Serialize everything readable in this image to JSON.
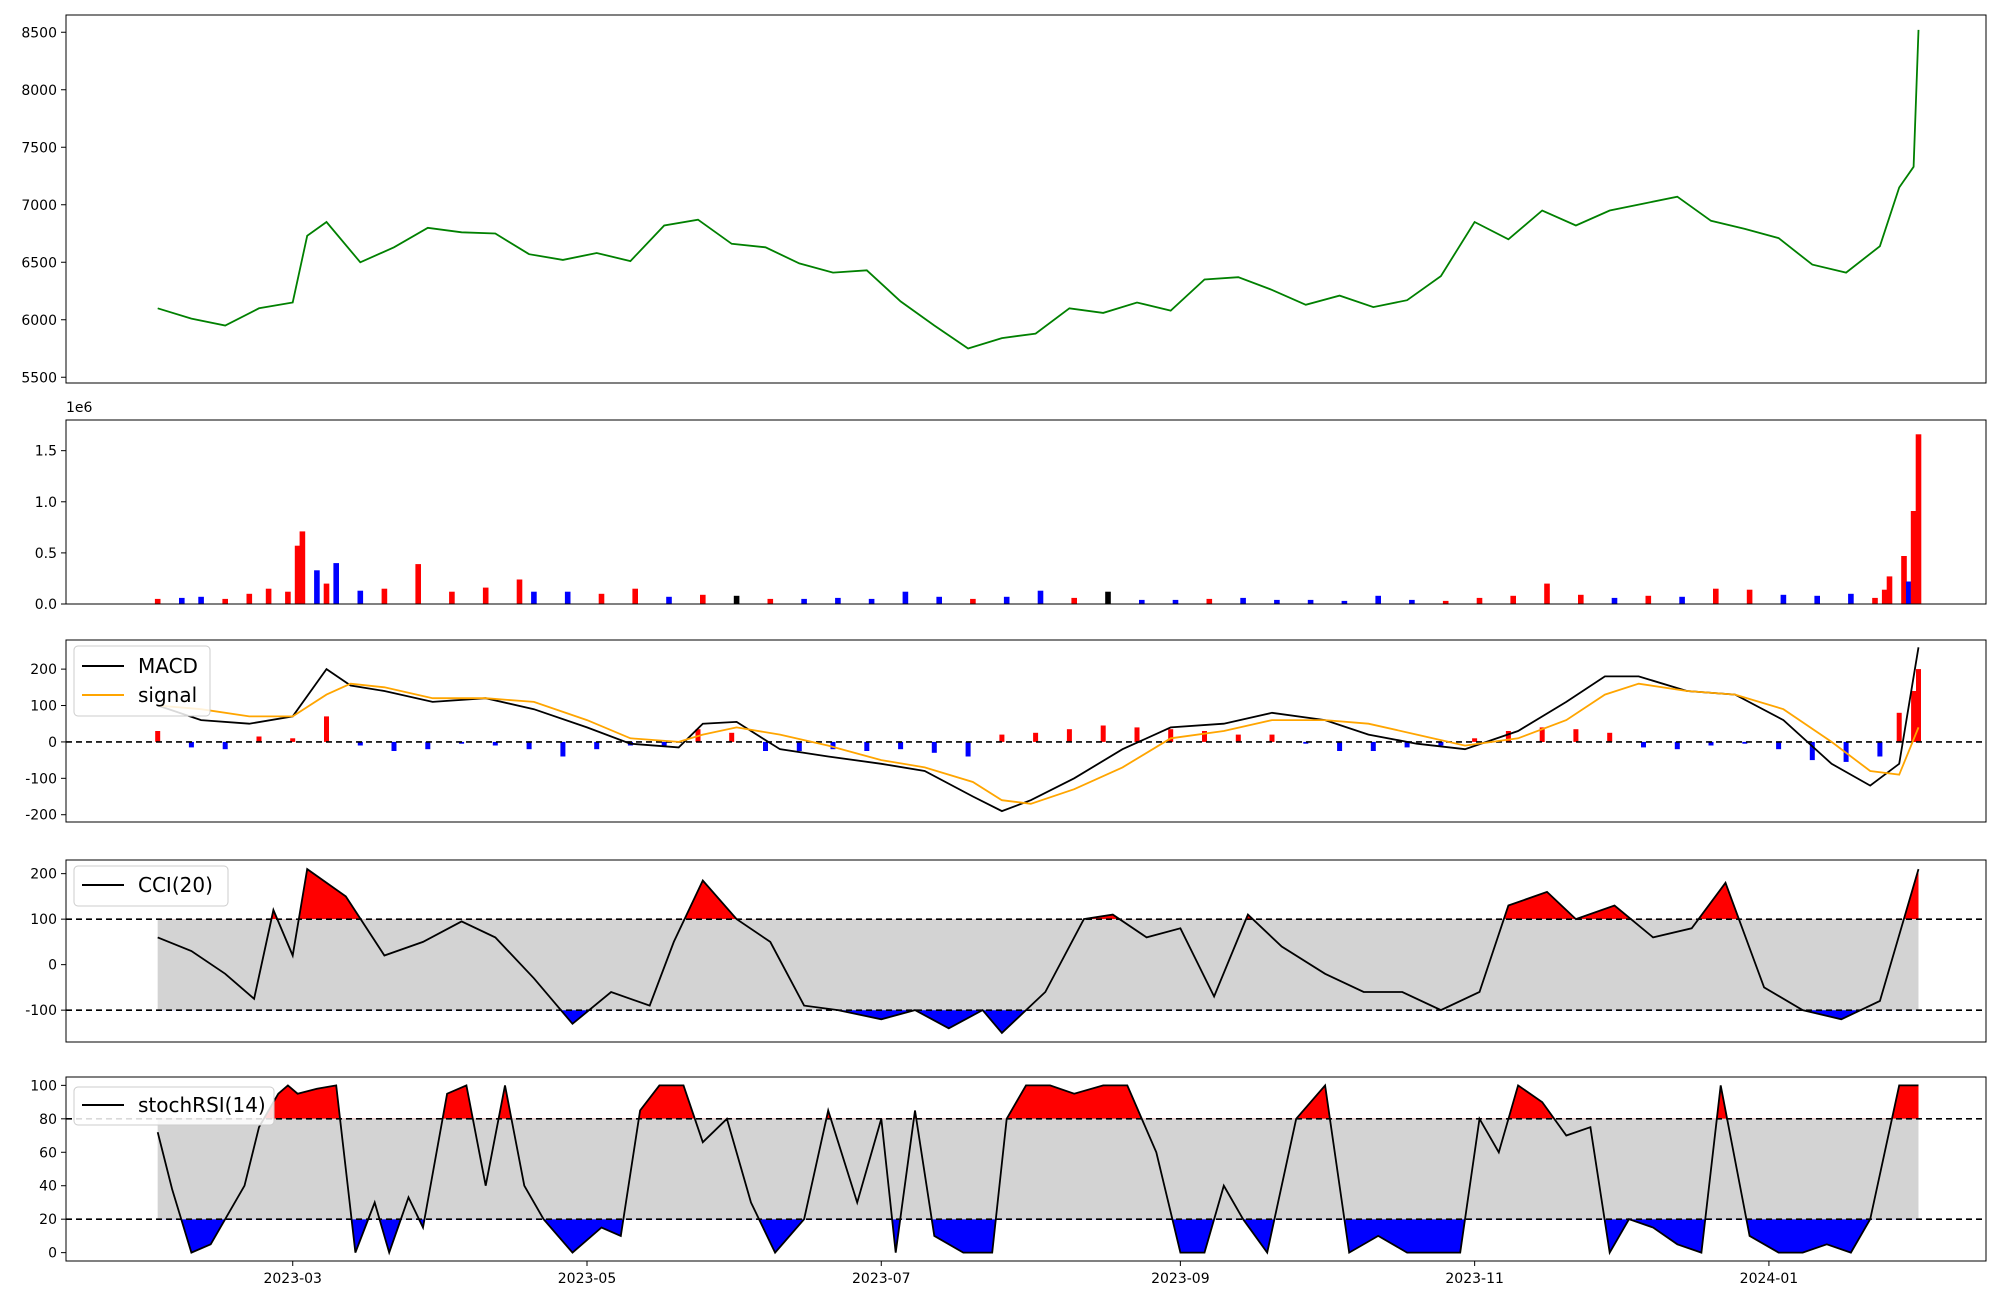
{
  "chart_data": [
    {
      "type": "line",
      "panel": "price",
      "color": "#008000",
      "ylim": [
        5450,
        8650
      ],
      "yticks": [
        5500,
        6000,
        6500,
        7000,
        7500,
        8000,
        8500
      ],
      "x": [
        "2023-02-01",
        "2023-02-08",
        "2023-02-15",
        "2023-02-22",
        "2023-03-01",
        "2023-03-04",
        "2023-03-08",
        "2023-03-15",
        "2023-03-22",
        "2023-03-29",
        "2023-04-05",
        "2023-04-12",
        "2023-04-19",
        "2023-04-26",
        "2023-05-03",
        "2023-05-10",
        "2023-05-17",
        "2023-05-24",
        "2023-05-31",
        "2023-06-07",
        "2023-06-14",
        "2023-06-21",
        "2023-06-28",
        "2023-07-05",
        "2023-07-12",
        "2023-07-19",
        "2023-07-26",
        "2023-08-02",
        "2023-08-09",
        "2023-08-16",
        "2023-08-23",
        "2023-08-30",
        "2023-09-06",
        "2023-09-13",
        "2023-09-20",
        "2023-09-27",
        "2023-10-04",
        "2023-10-11",
        "2023-10-18",
        "2023-10-25",
        "2023-11-01",
        "2023-11-08",
        "2023-11-15",
        "2023-11-22",
        "2023-11-29",
        "2023-12-06",
        "2023-12-13",
        "2023-12-20",
        "2023-12-27",
        "2024-01-03",
        "2024-01-10",
        "2024-01-17",
        "2024-01-24",
        "2024-01-28",
        "2024-01-31",
        "2024-02-01"
      ],
      "values": [
        6100,
        6010,
        5950,
        6100,
        6150,
        6730,
        6850,
        6500,
        6630,
        6800,
        6760,
        6750,
        6570,
        6520,
        6580,
        6510,
        6820,
        6870,
        6660,
        6630,
        6490,
        6410,
        6430,
        6160,
        5950,
        5750,
        5840,
        5880,
        6100,
        6060,
        6150,
        6080,
        6350,
        6370,
        6260,
        6130,
        6210,
        6110,
        6170,
        6380,
        6850,
        6700,
        6950,
        6820,
        6950,
        7010,
        7070,
        6860,
        6790,
        6710,
        6480,
        6410,
        6640,
        7150,
        7330,
        8520
      ],
      "title": "",
      "xlabel": "",
      "ylabel": ""
    },
    {
      "type": "bar",
      "panel": "volume",
      "offset_label": "1e6",
      "ylim": [
        0,
        1.8
      ],
      "yticks": [
        0.0,
        0.5,
        1.0,
        1.5
      ],
      "bar_colors": {
        "up": "#ff0000",
        "down": "#0000ff",
        "flat": "#000000"
      },
      "x": [
        "2023-02-01",
        "2023-02-06",
        "2023-02-10",
        "2023-02-15",
        "2023-02-20",
        "2023-02-24",
        "2023-02-28",
        "2023-03-02",
        "2023-03-03",
        "2023-03-06",
        "2023-03-08",
        "2023-03-10",
        "2023-03-15",
        "2023-03-20",
        "2023-03-27",
        "2023-04-03",
        "2023-04-10",
        "2023-04-17",
        "2023-04-20",
        "2023-04-27",
        "2023-05-04",
        "2023-05-11",
        "2023-05-18",
        "2023-05-25",
        "2023-06-01",
        "2023-06-08",
        "2023-06-15",
        "2023-06-22",
        "2023-06-29",
        "2023-07-06",
        "2023-07-13",
        "2023-07-20",
        "2023-07-27",
        "2023-08-03",
        "2023-08-10",
        "2023-08-17",
        "2023-08-24",
        "2023-08-31",
        "2023-09-07",
        "2023-09-14",
        "2023-09-21",
        "2023-09-28",
        "2023-10-05",
        "2023-10-12",
        "2023-10-19",
        "2023-10-26",
        "2023-11-02",
        "2023-11-09",
        "2023-11-16",
        "2023-11-23",
        "2023-11-30",
        "2023-12-07",
        "2023-12-14",
        "2023-12-21",
        "2023-12-28",
        "2024-01-04",
        "2024-01-11",
        "2024-01-18",
        "2024-01-23",
        "2024-01-25",
        "2024-01-26",
        "2024-01-29",
        "2024-01-30",
        "2024-01-31",
        "2024-02-01"
      ],
      "values": [
        0.05,
        0.06,
        0.07,
        0.05,
        0.1,
        0.15,
        0.12,
        0.57,
        0.71,
        0.33,
        0.2,
        0.4,
        0.13,
        0.15,
        0.39,
        0.12,
        0.16,
        0.24,
        0.12,
        0.12,
        0.1,
        0.15,
        0.07,
        0.09,
        0.08,
        0.05,
        0.05,
        0.06,
        0.05,
        0.12,
        0.07,
        0.05,
        0.07,
        0.13,
        0.06,
        0.12,
        0.04,
        0.04,
        0.05,
        0.06,
        0.04,
        0.04,
        0.03,
        0.08,
        0.04,
        0.03,
        0.06,
        0.08,
        0.2,
        0.09,
        0.06,
        0.08,
        0.07,
        0.15,
        0.14,
        0.09,
        0.08,
        0.1,
        0.06,
        0.14,
        0.27,
        0.47,
        0.22,
        0.91,
        1.66
      ],
      "direction": [
        "up",
        "down",
        "down",
        "up",
        "up",
        "up",
        "up",
        "up",
        "up",
        "down",
        "up",
        "down",
        "down",
        "up",
        "up",
        "up",
        "up",
        "up",
        "down",
        "down",
        "up",
        "up",
        "down",
        "up",
        "flat",
        "up",
        "down",
        "down",
        "down",
        "down",
        "down",
        "up",
        "down",
        "down",
        "up",
        "flat",
        "down",
        "down",
        "up",
        "down",
        "down",
        "down",
        "down",
        "down",
        "down",
        "up",
        "up",
        "up",
        "up",
        "up",
        "down",
        "up",
        "down",
        "up",
        "up",
        "down",
        "down",
        "down",
        "up",
        "up",
        "up",
        "up",
        "down",
        "up",
        "up"
      ],
      "title": "",
      "xlabel": "",
      "ylabel": ""
    },
    {
      "type": "line",
      "panel": "macd",
      "ylim": [
        -220,
        280
      ],
      "yticks": [
        -200,
        -100,
        0,
        100,
        200
      ],
      "zero_line": 0,
      "x": [
        "2023-02-01",
        "2023-02-10",
        "2023-02-20",
        "2023-03-01",
        "2023-03-08",
        "2023-03-13",
        "2023-03-20",
        "2023-03-30",
        "2023-04-10",
        "2023-04-20",
        "2023-05-01",
        "2023-05-10",
        "2023-05-20",
        "2023-05-25",
        "2023-06-01",
        "2023-06-10",
        "2023-06-20",
        "2023-07-01",
        "2023-07-10",
        "2023-07-20",
        "2023-07-26",
        "2023-08-01",
        "2023-08-10",
        "2023-08-20",
        "2023-08-30",
        "2023-09-10",
        "2023-09-20",
        "2023-10-01",
        "2023-10-10",
        "2023-10-20",
        "2023-10-30",
        "2023-11-10",
        "2023-11-20",
        "2023-11-28",
        "2023-12-05",
        "2023-12-15",
        "2023-12-25",
        "2024-01-04",
        "2024-01-14",
        "2024-01-22",
        "2024-01-28",
        "2024-02-01"
      ],
      "series": [
        {
          "name": "MACD",
          "color": "#000000",
          "values": [
            100,
            60,
            50,
            70,
            200,
            155,
            140,
            110,
            120,
            90,
            40,
            -5,
            -15,
            50,
            55,
            -20,
            -40,
            -60,
            -80,
            -150,
            -190,
            -160,
            -100,
            -20,
            40,
            50,
            80,
            60,
            20,
            -5,
            -20,
            30,
            110,
            180,
            180,
            140,
            130,
            60,
            -60,
            -120,
            -60,
            260
          ]
        },
        {
          "name": "signal",
          "color": "#ffa500",
          "values": [
            100,
            90,
            70,
            70,
            130,
            160,
            150,
            120,
            120,
            110,
            60,
            10,
            0,
            20,
            40,
            20,
            -10,
            -50,
            -70,
            -110,
            -160,
            -170,
            -130,
            -70,
            10,
            30,
            60,
            60,
            50,
            20,
            -10,
            10,
            60,
            130,
            160,
            140,
            130,
            90,
            0,
            -80,
            -90,
            40
          ]
        }
      ],
      "histogram": {
        "pos_color": "#ff0000",
        "neg_color": "#0000ff",
        "x": [
          "2023-02-01",
          "2023-02-08",
          "2023-02-15",
          "2023-02-22",
          "2023-03-01",
          "2023-03-08",
          "2023-03-15",
          "2023-03-22",
          "2023-03-29",
          "2023-04-05",
          "2023-04-12",
          "2023-04-19",
          "2023-04-26",
          "2023-05-03",
          "2023-05-10",
          "2023-05-17",
          "2023-05-24",
          "2023-05-31",
          "2023-06-07",
          "2023-06-14",
          "2023-06-21",
          "2023-06-28",
          "2023-07-05",
          "2023-07-12",
          "2023-07-19",
          "2023-07-26",
          "2023-08-02",
          "2023-08-09",
          "2023-08-16",
          "2023-08-23",
          "2023-08-30",
          "2023-09-06",
          "2023-09-13",
          "2023-09-20",
          "2023-09-27",
          "2023-10-04",
          "2023-10-11",
          "2023-10-18",
          "2023-10-25",
          "2023-11-01",
          "2023-11-08",
          "2023-11-15",
          "2023-11-22",
          "2023-11-29",
          "2023-12-06",
          "2023-12-13",
          "2023-12-20",
          "2023-12-27",
          "2024-01-03",
          "2024-01-10",
          "2024-01-17",
          "2024-01-24",
          "2024-01-28",
          "2024-01-31",
          "2024-02-01"
        ],
        "values": [
          30,
          -15,
          -20,
          15,
          10,
          70,
          -10,
          -25,
          -20,
          -5,
          -10,
          -20,
          -40,
          -20,
          -10,
          -10,
          35,
          25,
          -25,
          -25,
          -20,
          -25,
          -20,
          -30,
          -40,
          20,
          25,
          35,
          45,
          40,
          35,
          30,
          20,
          20,
          -5,
          -25,
          -25,
          -15,
          -10,
          10,
          30,
          40,
          35,
          25,
          -15,
          -20,
          -10,
          -5,
          -20,
          -50,
          -55,
          -40,
          80,
          140,
          200
        ]
      },
      "legend": "top-left",
      "title": "",
      "xlabel": "",
      "ylabel": ""
    },
    {
      "type": "line",
      "panel": "cci",
      "ylim": [
        -170,
        230
      ],
      "yticks": [
        -100,
        0,
        100,
        200
      ],
      "bands": [
        -100,
        100
      ],
      "fill_colors": {
        "band": "#d3d3d3",
        "above": "#ff0000",
        "below": "#0000ff"
      },
      "series": [
        {
          "name": "CCI(20)",
          "color": "#000000",
          "x": [
            "2023-02-01",
            "2023-02-08",
            "2023-02-15",
            "2023-02-21",
            "2023-02-25",
            "2023-03-01",
            "2023-03-04",
            "2023-03-12",
            "2023-03-20",
            "2023-03-28",
            "2023-04-05",
            "2023-04-12",
            "2023-04-20",
            "2023-04-28",
            "2023-05-06",
            "2023-05-14",
            "2023-05-19",
            "2023-05-25",
            "2023-06-01",
            "2023-06-08",
            "2023-06-15",
            "2023-06-22",
            "2023-07-01",
            "2023-07-08",
            "2023-07-15",
            "2023-07-22",
            "2023-07-26",
            "2023-08-04",
            "2023-08-12",
            "2023-08-18",
            "2023-08-25",
            "2023-09-01",
            "2023-09-08",
            "2023-09-15",
            "2023-09-22",
            "2023-10-01",
            "2023-10-09",
            "2023-10-17",
            "2023-10-25",
            "2023-11-02",
            "2023-11-08",
            "2023-11-16",
            "2023-11-22",
            "2023-11-30",
            "2023-12-08",
            "2023-12-16",
            "2023-12-23",
            "2023-12-31",
            "2024-01-08",
            "2024-01-16",
            "2024-01-24",
            "2024-02-01"
          ],
          "values": [
            60,
            30,
            -20,
            -75,
            120,
            20,
            210,
            150,
            20,
            50,
            95,
            60,
            -30,
            -130,
            -60,
            -90,
            50,
            185,
            100,
            50,
            -90,
            -100,
            -120,
            -100,
            -140,
            -100,
            -150,
            -60,
            100,
            110,
            60,
            80,
            -70,
            110,
            40,
            -20,
            -60,
            -60,
            -100,
            -60,
            130,
            160,
            100,
            130,
            60,
            80,
            180,
            -50,
            -100,
            -120,
            -80,
            210
          ]
        }
      ],
      "legend": "top-left",
      "title": "",
      "xlabel": "",
      "ylabel": ""
    },
    {
      "type": "line",
      "panel": "stochrsi",
      "ylim": [
        -5,
        105
      ],
      "yticks": [
        0,
        20,
        40,
        60,
        80,
        100
      ],
      "bands": [
        20,
        80
      ],
      "fill_colors": {
        "band": "#d3d3d3",
        "above": "#ff0000",
        "below": "#0000ff"
      },
      "xticks": [
        "2023-03",
        "2023-05",
        "2023-07",
        "2023-09",
        "2023-11",
        "2024-01"
      ],
      "series": [
        {
          "name": "stochRSI(14)",
          "color": "#000000",
          "x": [
            "2023-02-01",
            "2023-02-04",
            "2023-02-08",
            "2023-02-12",
            "2023-02-16",
            "2023-02-19",
            "2023-02-22",
            "2023-02-26",
            "2023-02-28",
            "2023-03-02",
            "2023-03-06",
            "2023-03-10",
            "2023-03-14",
            "2023-03-18",
            "2023-03-21",
            "2023-03-25",
            "2023-03-28",
            "2023-04-02",
            "2023-04-06",
            "2023-04-10",
            "2023-04-14",
            "2023-04-18",
            "2023-04-22",
            "2023-04-28",
            "2023-05-04",
            "2023-05-08",
            "2023-05-12",
            "2023-05-16",
            "2023-05-21",
            "2023-05-25",
            "2023-05-30",
            "2023-06-04",
            "2023-06-09",
            "2023-06-15",
            "2023-06-20",
            "2023-06-26",
            "2023-07-01",
            "2023-07-04",
            "2023-07-08",
            "2023-07-12",
            "2023-07-18",
            "2023-07-24",
            "2023-07-27",
            "2023-07-31",
            "2023-08-05",
            "2023-08-10",
            "2023-08-16",
            "2023-08-21",
            "2023-08-27",
            "2023-09-01",
            "2023-09-06",
            "2023-09-10",
            "2023-09-14",
            "2023-09-19",
            "2023-09-25",
            "2023-10-01",
            "2023-10-06",
            "2023-10-12",
            "2023-10-18",
            "2023-10-24",
            "2023-10-29",
            "2023-11-02",
            "2023-11-06",
            "2023-11-10",
            "2023-11-15",
            "2023-11-20",
            "2023-11-25",
            "2023-11-29",
            "2023-12-03",
            "2023-12-08",
            "2023-12-13",
            "2023-12-18",
            "2023-12-22",
            "2023-12-28",
            "2024-01-03",
            "2024-01-08",
            "2024-01-13",
            "2024-01-18",
            "2024-01-22",
            "2024-01-25",
            "2024-01-28",
            "2024-02-01"
          ],
          "values": [
            72,
            38,
            0,
            5,
            25,
            40,
            75,
            95,
            100,
            95,
            98,
            100,
            0,
            30,
            0,
            33,
            15,
            95,
            100,
            40,
            100,
            40,
            20,
            0,
            15,
            10,
            85,
            100,
            100,
            66,
            80,
            30,
            0,
            20,
            85,
            30,
            80,
            0,
            85,
            10,
            0,
            0,
            80,
            100,
            100,
            95,
            100,
            100,
            60,
            0,
            0,
            40,
            20,
            0,
            80,
            100,
            0,
            10,
            0,
            0,
            0,
            80,
            60,
            100,
            90,
            70,
            75,
            0,
            20,
            15,
            5,
            0,
            100,
            10,
            0,
            0,
            5,
            0,
            20,
            60,
            100,
            100
          ]
        }
      ],
      "legend": "top-left",
      "title": "",
      "xlabel": "",
      "ylabel": ""
    }
  ],
  "ui": {
    "macd_legend": [
      "MACD",
      "signal"
    ],
    "cci_legend": [
      "CCI(20)"
    ],
    "stoch_legend": [
      "stochRSI(14)"
    ]
  }
}
